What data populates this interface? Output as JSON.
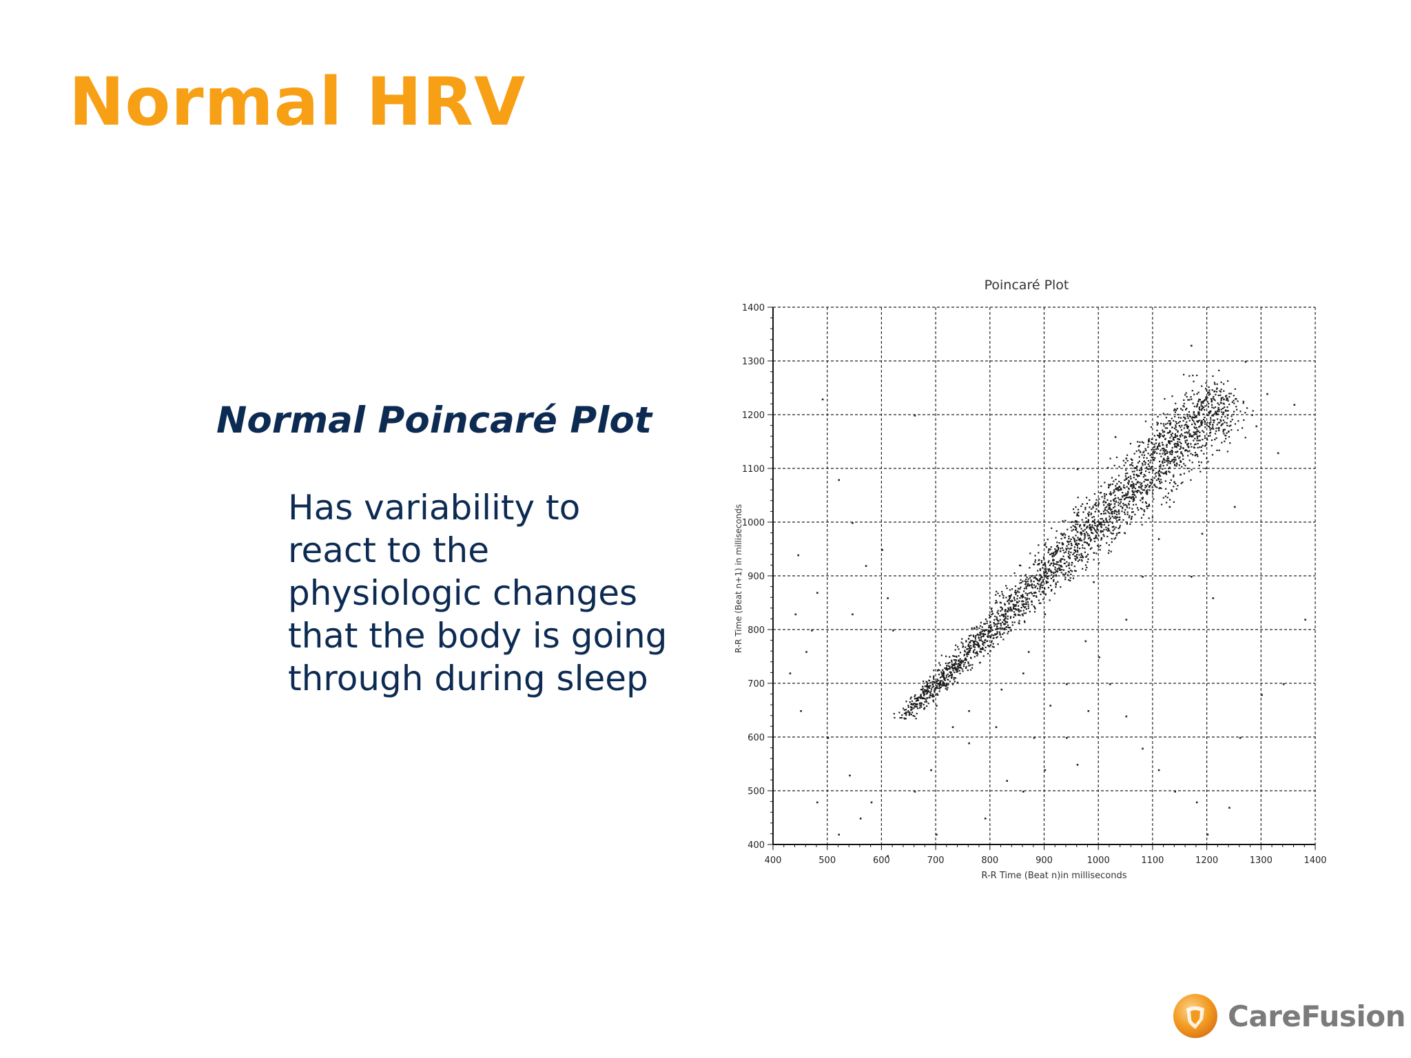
{
  "slide": {
    "title": "Normal HRV",
    "subtitle": "Normal Poincaré Plot",
    "body_lines": [
      "Has variability to",
      "react to the",
      "physiologic changes",
      "that the body is going",
      "through during sleep"
    ]
  },
  "logo": {
    "text": "CareFusion",
    "mark_icon": "carefusion-shield-icon"
  },
  "colors": {
    "title": "#f7a015",
    "text": "#0d2b52",
    "logo_orange": "#f39a1e"
  },
  "chart_data": {
    "type": "scatter",
    "title": "Poincaré Plot",
    "xlabel": "R-R Time (Beat n)in milliseconds",
    "ylabel": "R-R Time (Beat n+1) in milliseconds",
    "xlim": [
      400,
      1400
    ],
    "ylim": [
      400,
      1400
    ],
    "xticks": [
      400,
      500,
      600,
      700,
      800,
      900,
      1000,
      1100,
      1200,
      1300,
      1400
    ],
    "yticks": [
      400,
      500,
      600,
      700,
      800,
      900,
      1000,
      1100,
      1200,
      1300,
      1400
    ],
    "grid": true,
    "main_cluster": {
      "x_range": [
        640,
        1240
      ],
      "spread_ms": [
        18,
        95
      ],
      "density": "high along identity line, broadening with longer R-R"
    },
    "outliers": [
      [
        490,
        1230
      ],
      [
        520,
        1080
      ],
      [
        545,
        1000
      ],
      [
        600,
        950
      ],
      [
        610,
        860
      ],
      [
        620,
        800
      ],
      [
        660,
        1200
      ],
      [
        570,
        920
      ],
      [
        545,
        830
      ],
      [
        480,
        870
      ],
      [
        460,
        760
      ],
      [
        440,
        830
      ],
      [
        445,
        940
      ],
      [
        470,
        800
      ],
      [
        430,
        720
      ],
      [
        450,
        650
      ],
      [
        500,
        600
      ],
      [
        540,
        530
      ],
      [
        560,
        450
      ],
      [
        480,
        480
      ],
      [
        520,
        420
      ],
      [
        580,
        480
      ],
      [
        610,
        380
      ],
      [
        660,
        500
      ],
      [
        700,
        420
      ],
      [
        690,
        540
      ],
      [
        730,
        620
      ],
      [
        760,
        590
      ],
      [
        790,
        450
      ],
      [
        810,
        620
      ],
      [
        830,
        520
      ],
      [
        860,
        500
      ],
      [
        880,
        600
      ],
      [
        900,
        540
      ],
      [
        940,
        600
      ],
      [
        960,
        550
      ],
      [
        980,
        650
      ],
      [
        1020,
        700
      ],
      [
        1050,
        640
      ],
      [
        1080,
        580
      ],
      [
        1110,
        540
      ],
      [
        1140,
        500
      ],
      [
        1180,
        480
      ],
      [
        1200,
        420
      ],
      [
        1240,
        470
      ],
      [
        1260,
        600
      ],
      [
        1300,
        680
      ],
      [
        1340,
        700
      ],
      [
        1380,
        820
      ],
      [
        1170,
        900
      ],
      [
        1190,
        980
      ],
      [
        1210,
        860
      ],
      [
        1250,
        1030
      ],
      [
        1290,
        1180
      ],
      [
        1330,
        1130
      ],
      [
        1360,
        1220
      ],
      [
        1310,
        1240
      ],
      [
        1270,
        1300
      ],
      [
        1230,
        1230
      ],
      [
        1210,
        1200
      ],
      [
        1170,
        1330
      ],
      [
        1120,
        1170
      ],
      [
        1090,
        1080
      ],
      [
        1050,
        1120
      ],
      [
        1000,
        1000
      ],
      [
        860,
        720
      ],
      [
        820,
        690
      ],
      [
        780,
        740
      ],
      [
        700,
        660
      ],
      [
        730,
        700
      ],
      [
        760,
        650
      ],
      [
        870,
        760
      ],
      [
        900,
        830
      ],
      [
        940,
        700
      ],
      [
        910,
        660
      ],
      [
        975,
        780
      ],
      [
        1000,
        750
      ],
      [
        1050,
        820
      ],
      [
        1080,
        900
      ],
      [
        1110,
        970
      ],
      [
        1130,
        1030
      ],
      [
        1150,
        1090
      ],
      [
        880,
        870
      ],
      [
        1010,
        1050
      ],
      [
        960,
        1100
      ],
      [
        1030,
        1160
      ],
      [
        930,
        980
      ],
      [
        845,
        830
      ],
      [
        990,
        890
      ]
    ]
  }
}
